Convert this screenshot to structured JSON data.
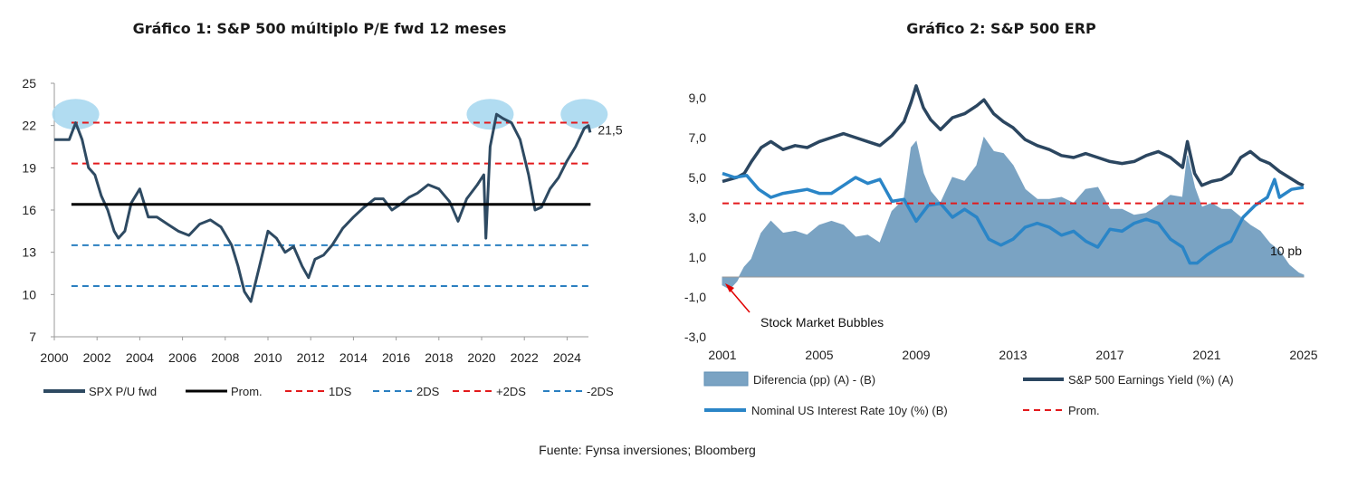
{
  "source": "Fuente: Fynsa inversiones; Bloomberg",
  "colors": {
    "series": "#2e4a62",
    "mean": "#000000",
    "band1": "#e31a1c",
    "band2": "#2a7fc0",
    "diff_fill": "#7aa3c3",
    "ey_line": "#2b4660",
    "rate_line": "#2a85c7",
    "highlight": "#a9d8ef"
  },
  "chart_data": [
    {
      "type": "line",
      "title": "Gráfico 1: S&P 500 múltiplo P/E fwd 12 meses",
      "xlabel": "",
      "ylabel": "",
      "xlim": [
        2000,
        2025
      ],
      "ylim": [
        7,
        25
      ],
      "x_ticks": [
        "2000",
        "2002",
        "2004",
        "2006",
        "2008",
        "2010",
        "2012",
        "2014",
        "2016",
        "2018",
        "2020",
        "2022",
        "2024"
      ],
      "y_ticks": [
        "25",
        "22",
        "19",
        "16",
        "13",
        "10",
        "7"
      ],
      "legend": [
        "SPX P/U fwd",
        "Prom.",
        "1DS",
        "2DS",
        "+2DS",
        "-2DS"
      ],
      "legend_position": "bottom",
      "annotation": "21,5",
      "reference_lines": {
        "mean": 16.4,
        "plus_1sd": 19.3,
        "minus_1sd": 13.5,
        "plus_2sd": 22.2,
        "minus_2sd": 10.6
      },
      "series": [
        {
          "name": "SPX P/U fwd",
          "x": [
            2000,
            2000.7,
            2001.0,
            2001.3,
            2001.6,
            2001.9,
            2002.2,
            2002.5,
            2002.8,
            2003.0,
            2003.3,
            2003.6,
            2004.0,
            2004.4,
            2004.8,
            2005.3,
            2005.8,
            2006.3,
            2006.8,
            2007.3,
            2007.8,
            2008.3,
            2008.6,
            2008.9,
            2009.2,
            2009.6,
            2010.0,
            2010.4,
            2010.8,
            2011.2,
            2011.6,
            2011.9,
            2012.2,
            2012.6,
            2013.0,
            2013.5,
            2014.0,
            2014.5,
            2015.0,
            2015.4,
            2015.8,
            2016.2,
            2016.6,
            2017.0,
            2017.5,
            2018.0,
            2018.5,
            2018.9,
            2019.3,
            2019.8,
            2020.1,
            2020.2,
            2020.4,
            2020.7,
            2021.0,
            2021.4,
            2021.8,
            2022.2,
            2022.5,
            2022.8,
            2023.2,
            2023.6,
            2024.0,
            2024.4,
            2024.8,
            2025.0,
            2025.08
          ],
          "y": [
            21.0,
            21.0,
            22.2,
            21.0,
            19.0,
            18.5,
            17.0,
            16.0,
            14.5,
            14.0,
            14.5,
            16.5,
            17.5,
            15.5,
            15.5,
            15.0,
            14.5,
            14.2,
            15.0,
            15.3,
            14.8,
            13.5,
            12.0,
            10.2,
            9.5,
            12.0,
            14.5,
            14.0,
            13.0,
            13.4,
            12.0,
            11.2,
            12.5,
            12.8,
            13.5,
            14.7,
            15.5,
            16.2,
            16.8,
            16.8,
            16.0,
            16.4,
            16.9,
            17.2,
            17.8,
            17.5,
            16.6,
            15.2,
            16.8,
            17.8,
            18.5,
            14.0,
            20.5,
            22.8,
            22.5,
            22.2,
            21.0,
            18.5,
            16.0,
            16.2,
            17.5,
            18.3,
            19.5,
            20.5,
            21.8,
            22.0,
            21.5
          ]
        }
      ]
    },
    {
      "type": "area",
      "title": "Gráfico 2: S&P 500 ERP",
      "xlabel": "",
      "ylabel": "",
      "xlim": [
        2001,
        2025
      ],
      "ylim": [
        -3,
        10
      ],
      "x_ticks": [
        "2001",
        "2005",
        "2009",
        "2013",
        "2017",
        "2021",
        "2025"
      ],
      "y_ticks": [
        "9,0",
        "7,0",
        "5,0",
        "3,0",
        "1,0",
        "-1,0",
        "-3,0"
      ],
      "legend": [
        "Diferencia (pp) (A) - (B)",
        "S&P 500 Earnings Yield (%) (A)",
        "Nominal US Interest Rate 10y (%) (B)",
        "Prom."
      ],
      "legend_position": "bottom",
      "annotations": [
        "10 pb",
        "Stock Market  Bubbles"
      ],
      "reference_lines": {
        "mean": 3.7
      },
      "series": [
        {
          "name": "S&P 500 Earnings Yield (%) (A)",
          "x": [
            2001.0,
            2001.3,
            2001.6,
            2001.9,
            2002.2,
            2002.6,
            2003.0,
            2003.5,
            2004.0,
            2004.5,
            2005.0,
            2005.5,
            2006.0,
            2006.5,
            2007.0,
            2007.5,
            2008.0,
            2008.5,
            2008.8,
            2009.0,
            2009.3,
            2009.6,
            2010.0,
            2010.5,
            2011.0,
            2011.5,
            2011.8,
            2012.2,
            2012.6,
            2013.0,
            2013.5,
            2014.0,
            2014.5,
            2015.0,
            2015.5,
            2016.0,
            2016.5,
            2017.0,
            2017.5,
            2018.0,
            2018.5,
            2019.0,
            2019.5,
            2020.0,
            2020.2,
            2020.5,
            2020.8,
            2021.2,
            2021.6,
            2022.0,
            2022.4,
            2022.8,
            2023.2,
            2023.6,
            2024.0,
            2024.4,
            2024.8,
            2025.0
          ],
          "y": [
            4.8,
            4.9,
            5.0,
            5.2,
            5.8,
            6.5,
            6.8,
            6.4,
            6.6,
            6.5,
            6.8,
            7.0,
            7.2,
            7.0,
            6.8,
            6.6,
            7.1,
            7.8,
            8.8,
            9.6,
            8.5,
            7.9,
            7.4,
            8.0,
            8.2,
            8.6,
            8.9,
            8.2,
            7.8,
            7.5,
            6.9,
            6.6,
            6.4,
            6.1,
            6.0,
            6.2,
            6.0,
            5.8,
            5.7,
            5.8,
            6.1,
            6.3,
            6.0,
            5.5,
            6.8,
            5.2,
            4.6,
            4.8,
            4.9,
            5.2,
            6.0,
            6.3,
            5.9,
            5.7,
            5.3,
            5.0,
            4.7,
            4.6
          ]
        },
        {
          "name": "Nominal US Interest Rate 10y (%) (B)",
          "x": [
            2001.0,
            2001.5,
            2002.0,
            2002.5,
            2003.0,
            2003.5,
            2004.0,
            2004.5,
            2005.0,
            2005.5,
            2006.0,
            2006.5,
            2007.0,
            2007.5,
            2008.0,
            2008.5,
            2009.0,
            2009.5,
            2010.0,
            2010.5,
            2011.0,
            2011.5,
            2012.0,
            2012.5,
            2013.0,
            2013.5,
            2014.0,
            2014.5,
            2015.0,
            2015.5,
            2016.0,
            2016.5,
            2017.0,
            2017.5,
            2018.0,
            2018.5,
            2019.0,
            2019.5,
            2020.0,
            2020.3,
            2020.6,
            2021.0,
            2021.5,
            2022.0,
            2022.5,
            2023.0,
            2023.5,
            2023.8,
            2024.0,
            2024.5,
            2025.0
          ],
          "y": [
            5.2,
            5.0,
            5.1,
            4.4,
            4.0,
            4.2,
            4.3,
            4.4,
            4.2,
            4.2,
            4.6,
            5.0,
            4.7,
            4.9,
            3.8,
            3.9,
            2.8,
            3.6,
            3.7,
            3.0,
            3.4,
            3.0,
            1.9,
            1.6,
            1.9,
            2.5,
            2.7,
            2.5,
            2.1,
            2.3,
            1.8,
            1.5,
            2.4,
            2.3,
            2.7,
            2.9,
            2.7,
            1.9,
            1.5,
            0.7,
            0.7,
            1.1,
            1.5,
            1.8,
            3.0,
            3.6,
            4.0,
            4.9,
            4.0,
            4.4,
            4.5
          ]
        },
        {
          "name": "Diferencia (pp) (A) - (B)",
          "x": [
            2001.0,
            2001.3,
            2001.6,
            2001.9,
            2002.2,
            2002.6,
            2003.0,
            2003.5,
            2004.0,
            2004.5,
            2005.0,
            2005.5,
            2006.0,
            2006.5,
            2007.0,
            2007.5,
            2008.0,
            2008.5,
            2008.8,
            2009.0,
            2009.3,
            2009.6,
            2010.0,
            2010.5,
            2011.0,
            2011.5,
            2011.8,
            2012.2,
            2012.6,
            2013.0,
            2013.5,
            2014.0,
            2014.5,
            2015.0,
            2015.5,
            2016.0,
            2016.5,
            2017.0,
            2017.5,
            2018.0,
            2018.5,
            2019.0,
            2019.5,
            2020.0,
            2020.2,
            2020.5,
            2020.8,
            2021.2,
            2021.6,
            2022.0,
            2022.4,
            2022.8,
            2023.2,
            2023.6,
            2024.0,
            2024.4,
            2024.8,
            2025.0
          ],
          "y": [
            -0.4,
            -0.6,
            -0.2,
            0.5,
            0.9,
            2.2,
            2.8,
            2.2,
            2.3,
            2.1,
            2.6,
            2.8,
            2.6,
            2.0,
            2.1,
            1.7,
            3.3,
            3.9,
            6.5,
            6.8,
            5.2,
            4.3,
            3.7,
            5.0,
            4.8,
            5.6,
            7.0,
            6.3,
            6.2,
            5.6,
            4.4,
            3.9,
            3.9,
            4.0,
            3.7,
            4.4,
            4.5,
            3.4,
            3.4,
            3.1,
            3.2,
            3.6,
            4.1,
            4.0,
            6.1,
            4.5,
            3.5,
            3.7,
            3.4,
            3.4,
            3.0,
            2.6,
            2.3,
            1.7,
            1.3,
            0.6,
            0.2,
            0.1
          ]
        }
      ]
    }
  ]
}
